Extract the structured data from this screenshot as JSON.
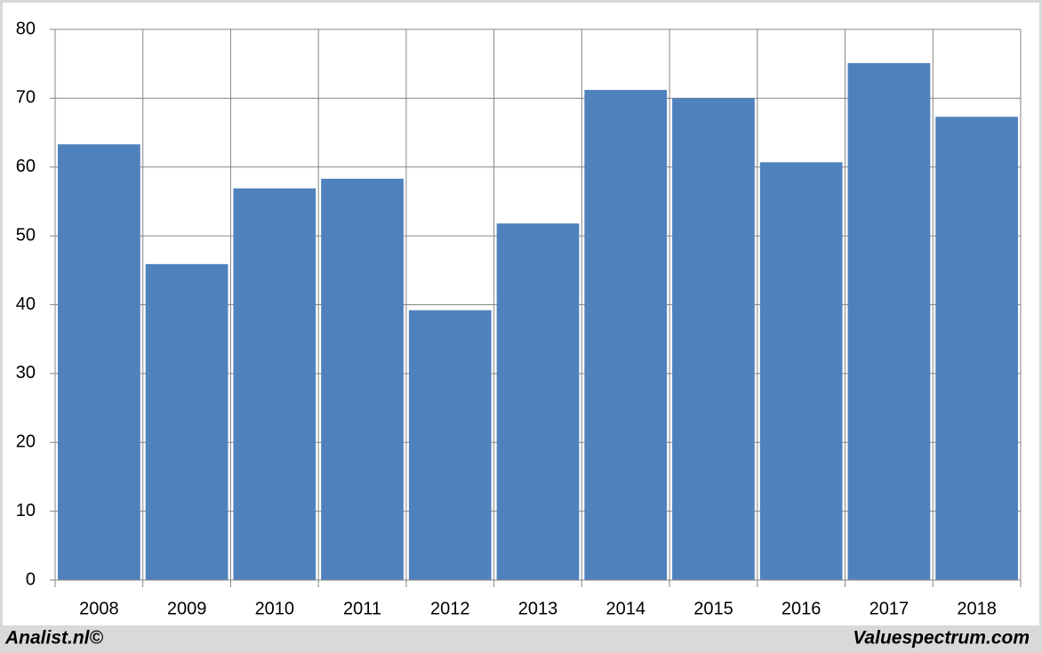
{
  "chart_data": {
    "type": "bar",
    "categories": [
      "2008",
      "2009",
      "2010",
      "2011",
      "2012",
      "2013",
      "2014",
      "2015",
      "2016",
      "2017",
      "2018"
    ],
    "values": [
      63.3,
      45.9,
      56.9,
      58.3,
      39.2,
      51.8,
      71.2,
      70.0,
      60.7,
      75.1,
      67.3
    ],
    "color": "#4f81bd",
    "ylim": [
      0,
      80
    ],
    "yticks": [
      0,
      10,
      20,
      30,
      40,
      50,
      60,
      70,
      80
    ],
    "grid": true,
    "credits": [
      "Analist.nl©",
      "Valuespectrum.com"
    ]
  }
}
